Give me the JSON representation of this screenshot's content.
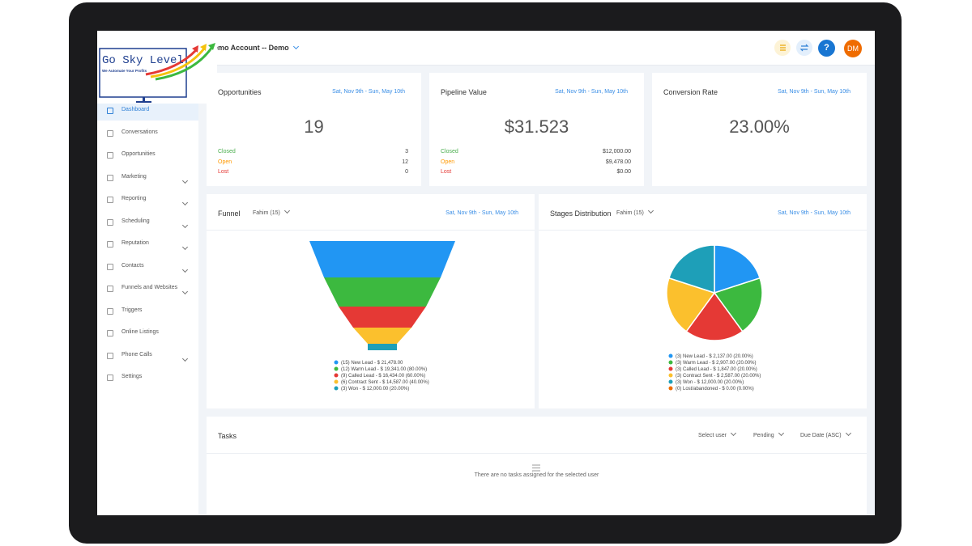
{
  "logo": {
    "title": "Go Sky Level",
    "tagline": "We Automate Your Profits"
  },
  "header": {
    "account": "emo Account -- Demo",
    "help": "?",
    "avatar": "DM"
  },
  "sidebar": [
    {
      "label": "Dashboard",
      "active": true
    },
    {
      "label": "Conversations"
    },
    {
      "label": "Opportunities"
    },
    {
      "label": "Marketing",
      "expandable": true
    },
    {
      "label": "Reporting",
      "expandable": true
    },
    {
      "label": "Scheduling",
      "expandable": true
    },
    {
      "label": "Reputation",
      "expandable": true
    },
    {
      "label": "Contacts",
      "expandable": true
    },
    {
      "label": "Funnels and Websites",
      "expandable": true
    },
    {
      "label": "Triggers"
    },
    {
      "label": "Online Listings"
    },
    {
      "label": "Phone Calls",
      "expandable": true
    },
    {
      "label": "Settings"
    }
  ],
  "cards": [
    {
      "title": "Opportunities",
      "date": "Sat, Nov 9th - Sun, May 10th",
      "value": "19",
      "rows": [
        {
          "label": "Closed",
          "value": "3"
        },
        {
          "label": "Open",
          "value": "12"
        },
        {
          "label": "Lost",
          "value": "0"
        }
      ]
    },
    {
      "title": "Pipeline Value",
      "date": "Sat, Nov 9th - Sun, May 10th",
      "value": "$31.523",
      "rows": [
        {
          "label": "Closed",
          "value": "$12,000.00"
        },
        {
          "label": "Open",
          "value": "$9,478.00"
        },
        {
          "label": "Lost",
          "value": "$0.00"
        }
      ]
    },
    {
      "title": "Conversion Rate",
      "date": "Sat, Nov 9th - Sun, May 10th",
      "value": "23.00%"
    }
  ],
  "funnel": {
    "title": "Funnel",
    "filter": "Fahim (15)",
    "date": "Sat, Nov 9th - Sun, May 10th",
    "values": [
      15,
      12,
      9,
      6,
      3
    ],
    "value_labels": [
      "(15) New Lead - $ 21,478.00",
      "(12) Warm Lead - $ 19,341.00 (80.00%)",
      "(9) Called Lead - $ 16,434.00 (60.00%)",
      "(6) Contract Sent - $ 14,587.00 (40.00%)",
      "(3) Won - $ 12,000.00 (20.00%)"
    ],
    "colors": [
      "#2196f3",
      "#3cb93f",
      "#e53935",
      "#fbc02d",
      "#1e9fb8"
    ]
  },
  "stages": {
    "title": "Stages Distribution",
    "filter": "Fahim (15)",
    "date": "Sat, Nov 9th - Sun, May 10th",
    "values": [
      3,
      3,
      3,
      3,
      3,
      0
    ],
    "value_labels": [
      "(3) New Lead - $ 2,137.00 (20.00%)",
      "(3) Warm Lead - $ 2,907.00 (20.00%)",
      "(3) Called Lead - $ 1,847.00 (20.00%)",
      "(3) Contract Sent - $ 2,587.00 (20.00%)",
      "(3) Won - $ 12,000.00 (20.00%)",
      "(0) Lost/abandoned - $ 0.00 (0.00%)"
    ],
    "colors": [
      "#2196f3",
      "#3cb93f",
      "#e53935",
      "#fbc02d",
      "#1e9fb8",
      "#ef6c00"
    ]
  },
  "tasks": {
    "title": "Tasks",
    "filters": [
      "Select user",
      "Pending",
      "Due Date (ASC)"
    ],
    "empty": "There are no tasks assigned for the selected user"
  }
}
